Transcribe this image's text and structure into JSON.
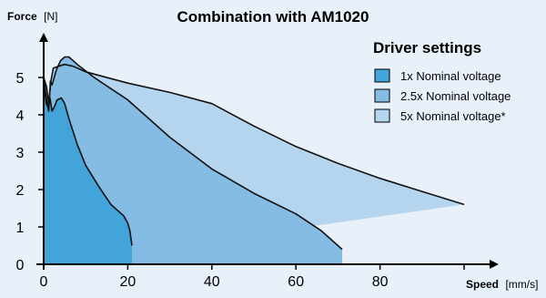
{
  "chart_data": {
    "type": "area",
    "title": "Combination with AM1020",
    "ylabel": "Force",
    "ylabel_unit": "[N]",
    "xlabel": "Speed",
    "xlabel_unit": "[mm/s]",
    "xlim": [
      0,
      100
    ],
    "ylim": [
      0,
      6
    ],
    "x_ticks": [
      0,
      20,
      40,
      60,
      80
    ],
    "y_ticks": [
      0,
      1,
      2,
      3,
      4,
      5
    ],
    "grid": false,
    "legend": {
      "title": "Driver settings",
      "placement": "top-right"
    },
    "background": "#e8f1fa",
    "series": [
      {
        "name": "5x Nominal voltage*",
        "color": "#b5d4ee",
        "points": [
          [
            0,
            0
          ],
          [
            0,
            5.0
          ],
          [
            0.7,
            4.75
          ],
          [
            1.2,
            4.3
          ],
          [
            1.7,
            4.9
          ],
          [
            2.3,
            5.25
          ],
          [
            3.5,
            5.3
          ],
          [
            5,
            5.35
          ],
          [
            7,
            5.3
          ],
          [
            10,
            5.15
          ],
          [
            20,
            4.85
          ],
          [
            30,
            4.6
          ],
          [
            40,
            4.3
          ],
          [
            50,
            3.7
          ],
          [
            60,
            3.15
          ],
          [
            70,
            2.7
          ],
          [
            80,
            2.3
          ],
          [
            90,
            1.95
          ],
          [
            100,
            1.6
          ]
        ]
      },
      {
        "name": "2.5x Nominal voltage",
        "color": "#84bce4",
        "points": [
          [
            0,
            0
          ],
          [
            0,
            5.0
          ],
          [
            0.7,
            4.4
          ],
          [
            1.2,
            4.1
          ],
          [
            1.6,
            4.9
          ],
          [
            2,
            4.8
          ],
          [
            3,
            5.2
          ],
          [
            4,
            5.45
          ],
          [
            5,
            5.55
          ],
          [
            6,
            5.55
          ],
          [
            8,
            5.35
          ],
          [
            12,
            5.0
          ],
          [
            20,
            4.4
          ],
          [
            30,
            3.4
          ],
          [
            40,
            2.55
          ],
          [
            50,
            1.9
          ],
          [
            60,
            1.35
          ],
          [
            66,
            0.9
          ],
          [
            71,
            0.4
          ],
          [
            71,
            0
          ]
        ]
      },
      {
        "name": "1x Nominal voltage",
        "color": "#43a4da",
        "points": [
          [
            0,
            0
          ],
          [
            0,
            4.9
          ],
          [
            0.6,
            4.3
          ],
          [
            1.1,
            4.2
          ],
          [
            1.5,
            4.45
          ],
          [
            2,
            4.1
          ],
          [
            2.5,
            4.2
          ],
          [
            3.2,
            4.4
          ],
          [
            4.2,
            4.45
          ],
          [
            5,
            4.3
          ],
          [
            6,
            3.9
          ],
          [
            8,
            3.2
          ],
          [
            10,
            2.65
          ],
          [
            13,
            2.1
          ],
          [
            16,
            1.6
          ],
          [
            19,
            1.3
          ],
          [
            20,
            1.1
          ],
          [
            20.5,
            0.9
          ],
          [
            21,
            0.5
          ],
          [
            21,
            0
          ]
        ]
      }
    ]
  }
}
